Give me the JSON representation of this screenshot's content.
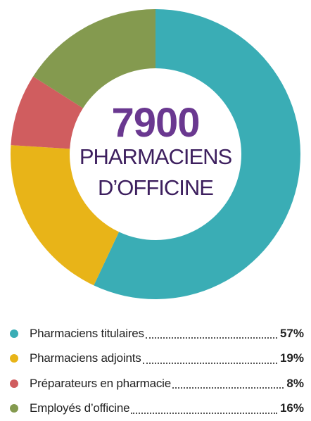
{
  "chart_data": {
    "type": "pie",
    "variant": "donut",
    "center": {
      "total": "7900",
      "line1": "PHARMACIENS",
      "line2": "D’OFFICINE"
    },
    "series": [
      {
        "name": "Pharmaciens titulaires",
        "value": 57,
        "label": "57%",
        "color": "#3aadb5"
      },
      {
        "name": "Pharmaciens adjoints",
        "value": 19,
        "label": "19%",
        "color": "#e8b418"
      },
      {
        "name": "Préparateurs en pharmacie",
        "value": 8,
        "label": "8%",
        "color": "#d05d5f"
      },
      {
        "name": "Employés d’officine",
        "value": 16,
        "label": "16%",
        "color": "#849a4f"
      }
    ],
    "legend_position": "bottom"
  }
}
